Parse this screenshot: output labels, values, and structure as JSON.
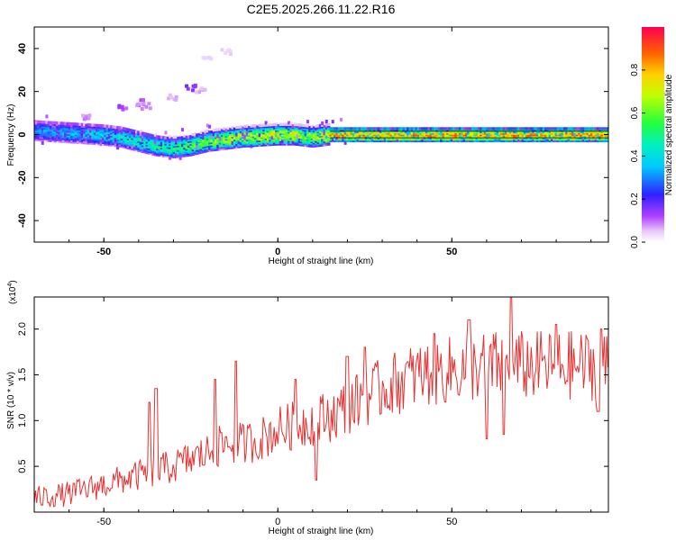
{
  "chart_data": [
    {
      "type": "heatmap",
      "title": "C2E5.2025.266.11.22.R16",
      "xlabel": "Height of straight line (km)",
      "ylabel": "Frequency (Hz)",
      "xlim": [
        -70,
        95
      ],
      "ylim": [
        -50,
        50
      ],
      "xticks": [
        -50,
        0,
        50
      ],
      "yticks": [
        40,
        20,
        0,
        -20,
        -40
      ],
      "xtick_labels": [
        "-50",
        "0",
        "50"
      ],
      "ytick_labels": [
        "40",
        "20",
        "0",
        "-20",
        "-40"
      ],
      "ridge": {
        "x": [
          -70,
          -60,
          -50,
          -45,
          -40,
          -35,
          -30,
          -25,
          -20,
          -15,
          -10,
          -5,
          0,
          5,
          10,
          15,
          20,
          30,
          40,
          50,
          60,
          70,
          80,
          90,
          95
        ],
        "freq": [
          2,
          1,
          0,
          -1,
          -3,
          -5,
          -6,
          -5,
          -3,
          -2,
          -1,
          -0.5,
          0,
          0,
          -1,
          0,
          0,
          0,
          0,
          0,
          0,
          0,
          0,
          0,
          0
        ],
        "amplitude": [
          0.35,
          0.4,
          0.45,
          0.5,
          0.55,
          0.55,
          0.6,
          0.65,
          0.7,
          0.75,
          0.8,
          0.8,
          0.85,
          0.8,
          0.75,
          0.9,
          0.95,
          0.95,
          0.95,
          0.95,
          0.95,
          0.95,
          0.95,
          0.95,
          0.95
        ]
      },
      "scatter_blobs": [
        {
          "x": -45,
          "freq": 12,
          "amplitude": 0.15
        },
        {
          "x": -40,
          "freq": 15,
          "amplitude": 0.12
        },
        {
          "x": -38,
          "freq": 13,
          "amplitude": 0.1
        },
        {
          "x": -30,
          "freq": 17,
          "amplitude": 0.08
        },
        {
          "x": -25,
          "freq": 22,
          "amplitude": 0.2
        },
        {
          "x": -22,
          "freq": 20,
          "amplitude": 0.08
        },
        {
          "x": -20,
          "freq": 35,
          "amplitude": 0.05
        },
        {
          "x": -15,
          "freq": 38,
          "amplitude": 0.05
        },
        {
          "x": -55,
          "freq": 8,
          "amplitude": 0.1
        }
      ],
      "colorbar": {
        "label": "Normalized spectral amplitude",
        "range": [
          0,
          1
        ],
        "ticks": [
          0.0,
          0.2,
          0.4,
          0.6,
          0.8
        ],
        "tick_labels": [
          "0.0",
          "0.2",
          "0.4",
          "0.6",
          "0.8"
        ]
      }
    },
    {
      "type": "line",
      "xlabel": "Height of straight line (km)",
      "ylabel": "SNR (10 * v/v)",
      "y_multiplier": "(x10",
      "y_multiplier_exp": "4",
      "y_multiplier_close": ")",
      "xlim": [
        -70,
        95
      ],
      "ylim": [
        0,
        23500
      ],
      "xticks": [
        -50,
        0,
        50
      ],
      "xtick_labels": [
        "-50",
        "0",
        "50"
      ],
      "yticks": [
        5000,
        10000,
        15000,
        20000
      ],
      "ytick_labels": [
        "0.5",
        "1.0",
        "1.5",
        "2.0"
      ],
      "color": "#e83030",
      "trend": {
        "x": [
          -70,
          -60,
          -50,
          -40,
          -30,
          -20,
          -15,
          -10,
          -5,
          0,
          5,
          10,
          15,
          20,
          30,
          40,
          50,
          60,
          70,
          80,
          90,
          95
        ],
        "y": [
          1500,
          2000,
          3000,
          4000,
          5000,
          6500,
          7500,
          7500,
          8000,
          9000,
          9500,
          10000,
          10500,
          11500,
          13500,
          15000,
          15500,
          16000,
          16000,
          16000,
          16000,
          16000
        ]
      },
      "spikes": [
        {
          "x": -37,
          "y": 12000
        },
        {
          "x": -35,
          "y": 13500
        },
        {
          "x": -18,
          "y": 14500
        },
        {
          "x": -12,
          "y": 16500
        },
        {
          "x": 5,
          "y": 14500
        },
        {
          "x": 20,
          "y": 17000
        },
        {
          "x": 25,
          "y": 18000
        },
        {
          "x": 45,
          "y": 19500
        },
        {
          "x": 55,
          "y": 21000
        },
        {
          "x": 60,
          "y": 22500
        },
        {
          "x": 67,
          "y": 23500
        },
        {
          "x": 80,
          "y": 20500
        },
        {
          "x": 93,
          "y": 20000
        }
      ],
      "dips": [
        {
          "x": 11,
          "y": 3500
        },
        {
          "x": 60,
          "y": 8000
        },
        {
          "x": 65,
          "y": 8500
        },
        {
          "x": 92,
          "y": 11000
        }
      ]
    }
  ]
}
